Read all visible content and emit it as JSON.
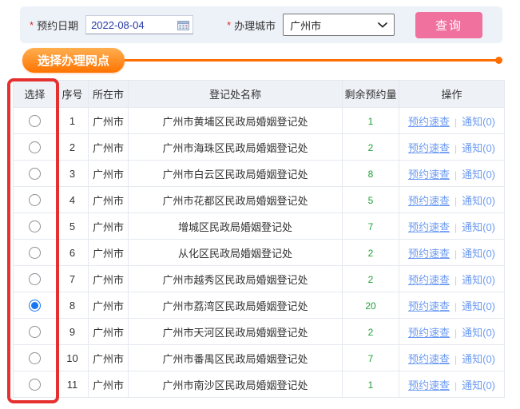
{
  "form": {
    "required_marker": "*",
    "date_label": "预约日期",
    "date_value": "2022-08-04",
    "city_label": "办理城市",
    "city_value": "广州市",
    "query_button_label": "查询"
  },
  "icons": {
    "calendar": "calendar-icon",
    "chevron": "chevron-down-icon"
  },
  "section": {
    "title": "选择办理网点"
  },
  "table": {
    "headers": [
      "选择",
      "序号",
      "所在市",
      "登记处名称",
      "剩余预约量",
      "操作"
    ],
    "actions": {
      "quick_check": "预约速查",
      "separator": "|",
      "notify": "通知(0)"
    },
    "rows": [
      {
        "no": "1",
        "city": "广州市",
        "name": "广州市黄埔区民政局婚姻登记处",
        "remaining": "1",
        "selected": false
      },
      {
        "no": "2",
        "city": "广州市",
        "name": "广州市海珠区民政局婚姻登记处",
        "remaining": "2",
        "selected": false
      },
      {
        "no": "3",
        "city": "广州市",
        "name": "广州市白云区民政局婚姻登记处",
        "remaining": "8",
        "selected": false
      },
      {
        "no": "4",
        "city": "广州市",
        "name": "广州市花都区民政局婚姻登记处",
        "remaining": "5",
        "selected": false
      },
      {
        "no": "5",
        "city": "广州市",
        "name": "增城区民政局婚姻登记处",
        "remaining": "7",
        "selected": false
      },
      {
        "no": "6",
        "city": "广州市",
        "name": "从化区民政局婚姻登记处",
        "remaining": "2",
        "selected": false
      },
      {
        "no": "7",
        "city": "广州市",
        "name": "广州市越秀区民政局婚姻登记处",
        "remaining": "2",
        "selected": false
      },
      {
        "no": "8",
        "city": "广州市",
        "name": "广州市荔湾区民政局婚姻登记处",
        "remaining": "20",
        "selected": true
      },
      {
        "no": "9",
        "city": "广州市",
        "name": "广州市天河区民政局婚姻登记处",
        "remaining": "2",
        "selected": false
      },
      {
        "no": "10",
        "city": "广州市",
        "name": "广州市番禺区民政局婚姻登记处",
        "remaining": "7",
        "selected": false
      },
      {
        "no": "11",
        "city": "广州市",
        "name": "广州市南沙区民政局婚姻登记处",
        "remaining": "1",
        "selected": false
      }
    ]
  },
  "colors": {
    "bar_background": "#EDF1F8",
    "accent_orange": "#FF6E00",
    "button_pink": "#F0709E",
    "link_blue": "#6D9BF2",
    "remaining_green": "#21A035",
    "selected_radio_blue": "#1676F3",
    "highlight_red": "#E5302F",
    "date_text_blue": "#2438A6",
    "header_background": "#EEF1F6"
  }
}
